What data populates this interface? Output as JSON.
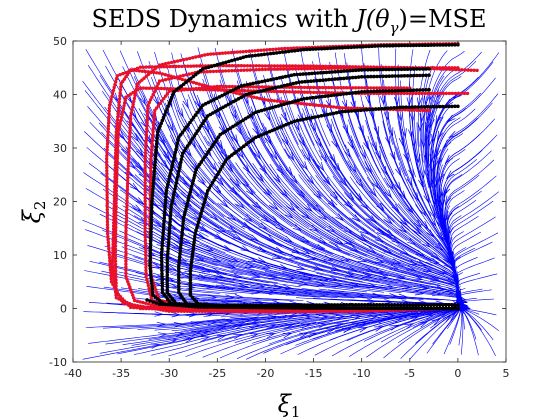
{
  "chart_data": {
    "type": "line",
    "title_prefix": "SEDS Dynamics with ",
    "title_math": "J(θ",
    "title_sub": "γ",
    "title_suffix": ")=MSE",
    "xlabel": "ξ",
    "xlabel_sub": "1",
    "ylabel": "ξ",
    "ylabel_sub": "2",
    "xlim": [
      -40,
      5
    ],
    "ylim": [
      -10,
      50
    ],
    "xticks": [
      "-40",
      "-35",
      "-30",
      "-25",
      "-20",
      "-15",
      "-10",
      "-5",
      "0",
      "5"
    ],
    "yticks": [
      "-10",
      "0",
      "10",
      "20",
      "30",
      "40",
      "50"
    ],
    "grid": false,
    "target": [
      0,
      0
    ],
    "colors": {
      "streamlines": "#0000ff",
      "reproductions": "#000000",
      "demonstrations": "#e8102a"
    },
    "series": [
      {
        "kind": "demonstrations",
        "paths": [
          [
            [
              0,
              49.5
            ],
            [
              -8,
              49.3
            ],
            [
              -18,
              48.6
            ],
            [
              -26,
              47.5
            ],
            [
              -31,
              45.5
            ],
            [
              -33.3,
              42
            ],
            [
              -34,
              36
            ],
            [
              -34.3,
              25
            ],
            [
              -34.5,
              14
            ],
            [
              -34.5,
              6
            ],
            [
              -33.6,
              1.5
            ],
            [
              -31,
              0.3
            ],
            [
              -20,
              0.1
            ],
            [
              -10,
              0.1
            ],
            [
              0,
              0
            ]
          ],
          [
            [
              0,
              45
            ],
            [
              -10,
              45
            ],
            [
              -20,
              44.7
            ],
            [
              -27,
              44.2
            ],
            [
              -31,
              42.5
            ],
            [
              -32.2,
              38
            ],
            [
              -32.5,
              28
            ],
            [
              -32.5,
              15
            ],
            [
              -32.4,
              6
            ],
            [
              -31.8,
              1.5
            ],
            [
              -29.5,
              0.3
            ],
            [
              -15,
              0.1
            ],
            [
              0,
              0
            ]
          ],
          [
            [
              2,
              44.5
            ],
            [
              -5,
              45
            ],
            [
              -15,
              45.3
            ],
            [
              -25,
              45.4
            ],
            [
              -33,
              45.1
            ],
            [
              -35.4,
              43.5
            ],
            [
              -36.2,
              38
            ],
            [
              -36.5,
              28
            ],
            [
              -36.4,
              14
            ],
            [
              -36,
              5
            ],
            [
              -34.8,
              1
            ],
            [
              -30,
              -0.5
            ],
            [
              -20,
              -0.6
            ],
            [
              -10,
              -0.5
            ],
            [
              0,
              0
            ]
          ],
          [
            [
              1,
              40.2
            ],
            [
              -10,
              40.2
            ],
            [
              -20,
              40.6
            ],
            [
              -28,
              41
            ],
            [
              -33,
              41.2
            ],
            [
              -34.5,
              39.5
            ],
            [
              -35.3,
              33
            ],
            [
              -35.5,
              22
            ],
            [
              -35.6,
              10
            ],
            [
              -35.5,
              3
            ],
            [
              -34,
              0.2
            ],
            [
              -28,
              -0.3
            ],
            [
              -15,
              -0.3
            ],
            [
              0,
              0
            ]
          ],
          [
            [
              -5,
              41.2
            ],
            [
              -15,
              41.3
            ],
            [
              -25,
              41.5
            ],
            [
              -30,
              40.6
            ],
            [
              -31.5,
              37
            ],
            [
              -31.9,
              28
            ],
            [
              -32,
              16
            ],
            [
              -31.9,
              6
            ],
            [
              -31,
              1.5
            ],
            [
              -28,
              0.4
            ],
            [
              -15,
              0.1
            ],
            [
              0,
              0
            ]
          ],
          [
            [
              -3,
              37
            ],
            [
              -12,
              37.5
            ],
            [
              -20,
              39
            ],
            [
              -26,
              41.5
            ],
            [
              -31,
              44
            ],
            [
              -34,
              44.6
            ],
            [
              -35,
              42
            ],
            [
              -35.5,
              33
            ],
            [
              -35.7,
              20
            ],
            [
              -35.9,
              8
            ],
            [
              -35.5,
              2
            ],
            [
              -33,
              0
            ],
            [
              -25,
              -0.2
            ],
            [
              0,
              0
            ]
          ]
        ]
      },
      {
        "kind": "reproductions",
        "paths": [
          [
            [
              0,
              49.3
            ],
            [
              -8,
              49.1
            ],
            [
              -16,
              48.4
            ],
            [
              -22,
              47.1
            ],
            [
              -26.5,
              44.8
            ],
            [
              -29.5,
              40.5
            ],
            [
              -31.2,
              33
            ],
            [
              -31.8,
              20
            ],
            [
              -32,
              8
            ],
            [
              -31.7,
              2.5
            ],
            [
              -30.5,
              0.8
            ],
            [
              -27,
              0.3
            ],
            [
              -15,
              0.1
            ],
            [
              0,
              0
            ]
          ],
          [
            [
              -3,
              44.8
            ],
            [
              -10,
              44.6
            ],
            [
              -17,
              43.7
            ],
            [
              -22.5,
              41.6
            ],
            [
              -26.5,
              38
            ],
            [
              -29,
              32
            ],
            [
              -30.3,
              22
            ],
            [
              -30.8,
              10
            ],
            [
              -30.7,
              3
            ],
            [
              -29.8,
              0.9
            ],
            [
              -27,
              0.3
            ],
            [
              -15,
              0.1
            ],
            [
              0,
              0
            ]
          ],
          [
            [
              -3,
              43.6
            ],
            [
              -10,
              43.3
            ],
            [
              -16.5,
              42.3
            ],
            [
              -22,
              40
            ],
            [
              -26,
              36
            ],
            [
              -28.6,
              29
            ],
            [
              -29.8,
              19
            ],
            [
              -30.2,
              9
            ],
            [
              -30.2,
              3
            ],
            [
              -29.3,
              0.9
            ],
            [
              -26,
              0.3
            ],
            [
              -15,
              0.1
            ],
            [
              0,
              0
            ]
          ],
          [
            [
              -3,
              40.9
            ],
            [
              -10,
              40.5
            ],
            [
              -16,
              39.2
            ],
            [
              -21,
              36.7
            ],
            [
              -24.7,
              32.5
            ],
            [
              -27.2,
              26
            ],
            [
              -28.5,
              17
            ],
            [
              -29,
              8
            ],
            [
              -29,
              3
            ],
            [
              -28.2,
              0.9
            ],
            [
              -25,
              0.3
            ],
            [
              -15,
              0.1
            ],
            [
              0,
              0
            ]
          ],
          [
            [
              0,
              37.8
            ],
            [
              -6,
              37.6
            ],
            [
              -12,
              36.8
            ],
            [
              -17,
              35
            ],
            [
              -21,
              32
            ],
            [
              -24,
              28
            ],
            [
              -26,
              22
            ],
            [
              -27.3,
              14
            ],
            [
              -27.8,
              7
            ],
            [
              -27.8,
              2.5
            ],
            [
              -27,
              0.9
            ],
            [
              -24,
              0.3
            ],
            [
              -12,
              0.1
            ],
            [
              0,
              0
            ]
          ],
          [
            [
              0,
              0.7
            ],
            [
              -10,
              0.7
            ],
            [
              -20,
              0.6
            ],
            [
              -27,
              0.6
            ],
            [
              -31,
              0.8
            ],
            [
              -32.3,
              1.6
            ]
          ]
        ]
      }
    ]
  }
}
